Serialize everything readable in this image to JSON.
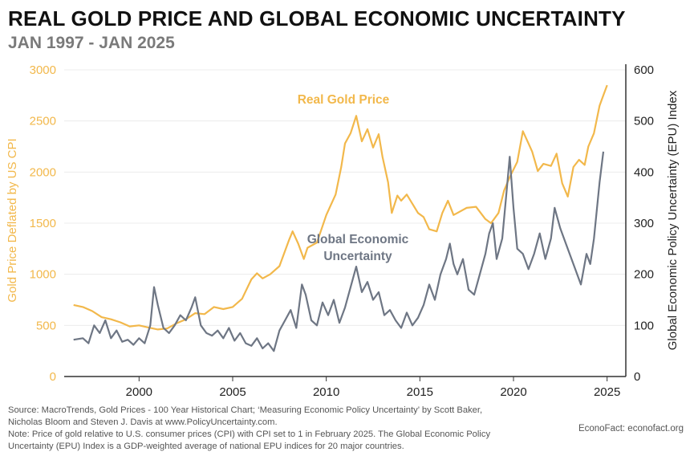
{
  "title": "REAL GOLD PRICE AND GLOBAL ECONOMIC UNCERTAINTY",
  "subtitle": "JAN 1997 - JAN 2025",
  "source_lines": [
    "Source: MacroTrends, Gold Prices - 100 Year Historical Chart; ‘Measuring Economic Policy Uncertainty’ by Scott Baker,",
    "Nicholas Bloom and Steven J. Davis at www.PolicyUncertainty.com.",
    "Note: Price of gold relative to U.S. consumer prices (CPI) with CPI set to 1 in February 2025. The Global Economic Policy",
    "Uncertainty (EPU) Index is a GDP-weighted average of national EPU indices for 20 major countries."
  ],
  "credit": "EconoFact:   econofact.org",
  "colors": {
    "gold": "#f2b84b",
    "epu": "#6e7684",
    "grid": "#ececec",
    "axis": "#333333"
  },
  "chart_data": {
    "type": "line",
    "x_ticks": [
      2000,
      2005,
      2010,
      2015,
      2020,
      2025
    ],
    "xlim": [
      1996,
      2026
    ],
    "left_axis": {
      "label": "Gold Price Deflated by US CPI",
      "ticks": [
        0,
        500,
        1000,
        1500,
        2000,
        2500,
        3000
      ],
      "ylim": [
        0,
        3000
      ]
    },
    "right_axis": {
      "label": "Global Economic Policy Uncertainty (EPU) Index",
      "ticks": [
        0,
        100,
        200,
        300,
        400,
        500,
        600
      ],
      "ylim": [
        0,
        600
      ]
    },
    "series": [
      {
        "name": "Real Gold Price",
        "axis": "left",
        "points": [
          [
            1996.5,
            700
          ],
          [
            1997.0,
            680
          ],
          [
            1997.5,
            640
          ],
          [
            1998.0,
            580
          ],
          [
            1998.5,
            560
          ],
          [
            1999.0,
            530
          ],
          [
            1999.5,
            490
          ],
          [
            2000.0,
            500
          ],
          [
            2000.5,
            480
          ],
          [
            2001.0,
            460
          ],
          [
            2001.5,
            470
          ],
          [
            2002.0,
            520
          ],
          [
            2002.5,
            560
          ],
          [
            2003.0,
            620
          ],
          [
            2003.5,
            610
          ],
          [
            2004.0,
            680
          ],
          [
            2004.5,
            660
          ],
          [
            2005.0,
            680
          ],
          [
            2005.5,
            760
          ],
          [
            2006.0,
            950
          ],
          [
            2006.3,
            1010
          ],
          [
            2006.6,
            960
          ],
          [
            2007.0,
            1000
          ],
          [
            2007.5,
            1080
          ],
          [
            2008.0,
            1330
          ],
          [
            2008.2,
            1420
          ],
          [
            2008.5,
            1300
          ],
          [
            2008.8,
            1150
          ],
          [
            2009.0,
            1260
          ],
          [
            2009.5,
            1310
          ],
          [
            2010.0,
            1580
          ],
          [
            2010.5,
            1780
          ],
          [
            2010.8,
            2050
          ],
          [
            2011.0,
            2280
          ],
          [
            2011.3,
            2380
          ],
          [
            2011.6,
            2550
          ],
          [
            2011.9,
            2300
          ],
          [
            2012.2,
            2420
          ],
          [
            2012.5,
            2240
          ],
          [
            2012.8,
            2370
          ],
          [
            2013.0,
            2150
          ],
          [
            2013.3,
            1900
          ],
          [
            2013.5,
            1600
          ],
          [
            2013.8,
            1770
          ],
          [
            2014.0,
            1720
          ],
          [
            2014.3,
            1780
          ],
          [
            2014.6,
            1690
          ],
          [
            2014.9,
            1600
          ],
          [
            2015.2,
            1560
          ],
          [
            2015.5,
            1440
          ],
          [
            2015.9,
            1420
          ],
          [
            2016.2,
            1600
          ],
          [
            2016.5,
            1720
          ],
          [
            2016.8,
            1580
          ],
          [
            2017.0,
            1600
          ],
          [
            2017.5,
            1650
          ],
          [
            2018.0,
            1660
          ],
          [
            2018.5,
            1540
          ],
          [
            2018.8,
            1500
          ],
          [
            2019.2,
            1600
          ],
          [
            2019.5,
            1820
          ],
          [
            2019.8,
            1950
          ],
          [
            2020.2,
            2100
          ],
          [
            2020.5,
            2400
          ],
          [
            2020.8,
            2280
          ],
          [
            2021.0,
            2200
          ],
          [
            2021.3,
            2010
          ],
          [
            2021.6,
            2080
          ],
          [
            2022.0,
            2060
          ],
          [
            2022.3,
            2180
          ],
          [
            2022.6,
            1890
          ],
          [
            2022.9,
            1760
          ],
          [
            2023.2,
            2050
          ],
          [
            2023.5,
            2120
          ],
          [
            2023.8,
            2070
          ],
          [
            2024.0,
            2250
          ],
          [
            2024.3,
            2380
          ],
          [
            2024.6,
            2650
          ],
          [
            2024.8,
            2750
          ],
          [
            2025.0,
            2850
          ]
        ]
      },
      {
        "name": "Global Economic Uncertainty",
        "axis": "right",
        "points": [
          [
            1996.5,
            72
          ],
          [
            1997.0,
            75
          ],
          [
            1997.3,
            65
          ],
          [
            1997.6,
            100
          ],
          [
            1997.9,
            85
          ],
          [
            1998.2,
            110
          ],
          [
            1998.5,
            75
          ],
          [
            1998.8,
            90
          ],
          [
            1999.1,
            68
          ],
          [
            1999.4,
            72
          ],
          [
            1999.7,
            62
          ],
          [
            2000.0,
            75
          ],
          [
            2000.3,
            65
          ],
          [
            2000.6,
            100
          ],
          [
            2000.8,
            175
          ],
          [
            2001.0,
            140
          ],
          [
            2001.3,
            95
          ],
          [
            2001.6,
            85
          ],
          [
            2001.9,
            100
          ],
          [
            2002.2,
            120
          ],
          [
            2002.5,
            110
          ],
          [
            2002.8,
            135
          ],
          [
            2003.0,
            155
          ],
          [
            2003.3,
            100
          ],
          [
            2003.6,
            85
          ],
          [
            2003.9,
            80
          ],
          [
            2004.2,
            90
          ],
          [
            2004.5,
            75
          ],
          [
            2004.8,
            95
          ],
          [
            2005.1,
            70
          ],
          [
            2005.4,
            85
          ],
          [
            2005.7,
            65
          ],
          [
            2006.0,
            60
          ],
          [
            2006.3,
            75
          ],
          [
            2006.6,
            55
          ],
          [
            2006.9,
            65
          ],
          [
            2007.2,
            50
          ],
          [
            2007.5,
            90
          ],
          [
            2007.8,
            110
          ],
          [
            2008.1,
            130
          ],
          [
            2008.4,
            95
          ],
          [
            2008.7,
            180
          ],
          [
            2008.9,
            160
          ],
          [
            2009.2,
            110
          ],
          [
            2009.5,
            100
          ],
          [
            2009.8,
            145
          ],
          [
            2010.1,
            120
          ],
          [
            2010.4,
            150
          ],
          [
            2010.7,
            105
          ],
          [
            2011.0,
            135
          ],
          [
            2011.3,
            175
          ],
          [
            2011.6,
            215
          ],
          [
            2011.9,
            165
          ],
          [
            2012.2,
            185
          ],
          [
            2012.5,
            150
          ],
          [
            2012.8,
            165
          ],
          [
            2013.1,
            120
          ],
          [
            2013.4,
            130
          ],
          [
            2013.7,
            110
          ],
          [
            2014.0,
            95
          ],
          [
            2014.3,
            125
          ],
          [
            2014.6,
            100
          ],
          [
            2014.9,
            115
          ],
          [
            2015.2,
            140
          ],
          [
            2015.5,
            180
          ],
          [
            2015.8,
            150
          ],
          [
            2016.1,
            200
          ],
          [
            2016.4,
            230
          ],
          [
            2016.6,
            260
          ],
          [
            2016.8,
            220
          ],
          [
            2017.0,
            200
          ],
          [
            2017.3,
            230
          ],
          [
            2017.6,
            170
          ],
          [
            2017.9,
            160
          ],
          [
            2018.2,
            200
          ],
          [
            2018.5,
            240
          ],
          [
            2018.7,
            280
          ],
          [
            2018.9,
            300
          ],
          [
            2019.1,
            230
          ],
          [
            2019.4,
            270
          ],
          [
            2019.6,
            350
          ],
          [
            2019.8,
            430
          ],
          [
            2020.0,
            330
          ],
          [
            2020.2,
            250
          ],
          [
            2020.5,
            240
          ],
          [
            2020.8,
            210
          ],
          [
            2021.1,
            240
          ],
          [
            2021.4,
            280
          ],
          [
            2021.7,
            230
          ],
          [
            2022.0,
            270
          ],
          [
            2022.2,
            330
          ],
          [
            2022.5,
            290
          ],
          [
            2022.8,
            260
          ],
          [
            2023.0,
            240
          ],
          [
            2023.3,
            210
          ],
          [
            2023.6,
            180
          ],
          [
            2023.9,
            240
          ],
          [
            2024.1,
            220
          ],
          [
            2024.3,
            270
          ],
          [
            2024.6,
            380
          ],
          [
            2024.8,
            440
          ]
        ]
      }
    ],
    "annotations": [
      {
        "text": "Real Gold Price",
        "series": "Real Gold Price"
      },
      {
        "text": "Global Economic Uncertainty",
        "series": "Global Economic Uncertainty"
      }
    ],
    "grid": true
  }
}
